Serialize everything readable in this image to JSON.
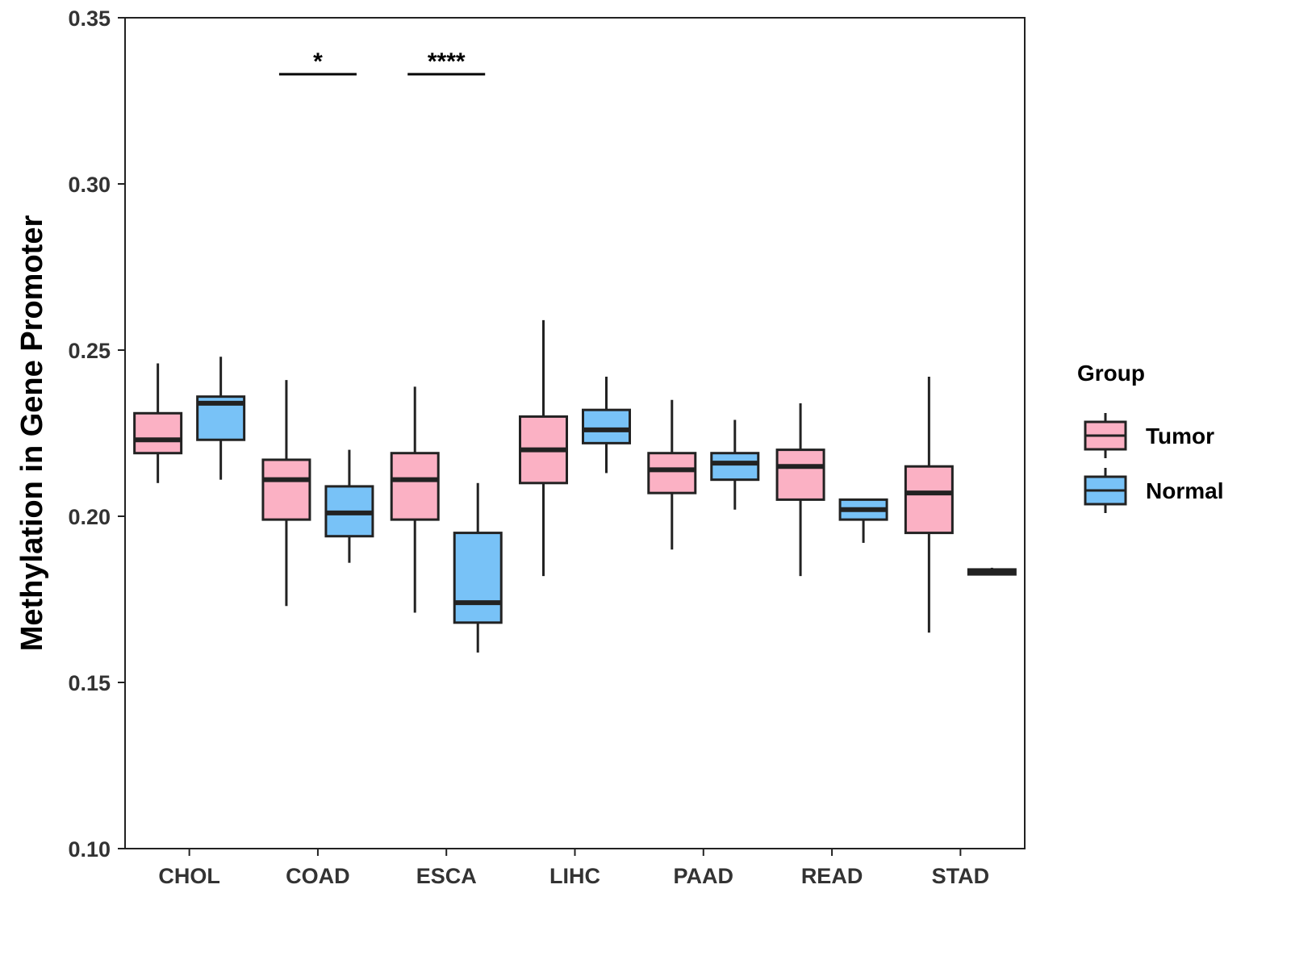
{
  "chart_data": {
    "type": "boxplot",
    "title": "",
    "xlabel": "",
    "ylabel": "Methylation in Gene Promoter",
    "ylim": [
      0.1,
      0.35
    ],
    "yticks": [
      "0.10",
      "0.15",
      "0.20",
      "0.25",
      "0.30",
      "0.35"
    ],
    "categories": [
      "CHOL",
      "COAD",
      "ESCA",
      "LIHC",
      "PAAD",
      "READ",
      "STAD"
    ],
    "legend": {
      "title": "Group",
      "position": "right",
      "entries": [
        {
          "name": "Tumor",
          "color": "#FBB1C4"
        },
        {
          "name": "Normal",
          "color": "#78C2F7"
        }
      ]
    },
    "series": [
      {
        "name": "Tumor",
        "color": "#FBB1C4",
        "boxes": [
          {
            "category": "CHOL",
            "min": 0.21,
            "q1": 0.219,
            "median": 0.223,
            "q3": 0.231,
            "max": 0.246
          },
          {
            "category": "COAD",
            "min": 0.173,
            "q1": 0.199,
            "median": 0.211,
            "q3": 0.217,
            "max": 0.241
          },
          {
            "category": "ESCA",
            "min": 0.171,
            "q1": 0.199,
            "median": 0.211,
            "q3": 0.219,
            "max": 0.239
          },
          {
            "category": "LIHC",
            "min": 0.182,
            "q1": 0.21,
            "median": 0.22,
            "q3": 0.23,
            "max": 0.259
          },
          {
            "category": "PAAD",
            "min": 0.19,
            "q1": 0.207,
            "median": 0.214,
            "q3": 0.219,
            "max": 0.235
          },
          {
            "category": "READ",
            "min": 0.182,
            "q1": 0.205,
            "median": 0.215,
            "q3": 0.22,
            "max": 0.234
          },
          {
            "category": "STAD",
            "min": 0.165,
            "q1": 0.195,
            "median": 0.207,
            "q3": 0.215,
            "max": 0.242
          }
        ]
      },
      {
        "name": "Normal",
        "color": "#78C2F7",
        "boxes": [
          {
            "category": "CHOL",
            "min": 0.211,
            "q1": 0.223,
            "median": 0.234,
            "q3": 0.236,
            "max": 0.248
          },
          {
            "category": "COAD",
            "min": 0.186,
            "q1": 0.194,
            "median": 0.201,
            "q3": 0.209,
            "max": 0.22
          },
          {
            "category": "ESCA",
            "min": 0.159,
            "q1": 0.168,
            "median": 0.174,
            "q3": 0.195,
            "max": 0.21
          },
          {
            "category": "LIHC",
            "min": 0.213,
            "q1": 0.222,
            "median": 0.226,
            "q3": 0.232,
            "max": 0.242
          },
          {
            "category": "PAAD",
            "min": 0.202,
            "q1": 0.211,
            "median": 0.216,
            "q3": 0.219,
            "max": 0.229
          },
          {
            "category": "READ",
            "min": 0.192,
            "q1": 0.199,
            "median": 0.202,
            "q3": 0.205,
            "max": 0.205
          },
          {
            "category": "STAD",
            "min": 0.1825,
            "q1": 0.1825,
            "median": 0.183,
            "q3": 0.184,
            "max": 0.1845
          }
        ]
      }
    ],
    "annotations": [
      {
        "category": "COAD",
        "label": "*",
        "y": 0.333
      },
      {
        "category": "ESCA",
        "label": "****",
        "y": 0.333
      }
    ]
  }
}
